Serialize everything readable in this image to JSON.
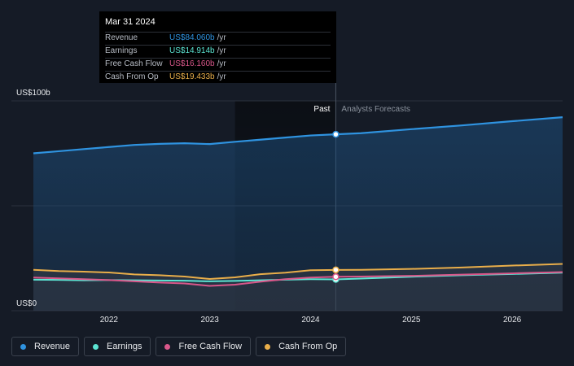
{
  "chart_data": {
    "type": "line",
    "y_unit_labels": [
      "US$100b",
      "US$0"
    ],
    "ylim": [
      0,
      100
    ],
    "xlim": [
      2021.25,
      2026.5
    ],
    "x_ticks": [
      {
        "value": 2022,
        "label": "2022"
      },
      {
        "value": 2023,
        "label": "2023"
      },
      {
        "value": 2024,
        "label": "2024"
      },
      {
        "value": 2025,
        "label": "2025"
      },
      {
        "value": 2026,
        "label": "2026"
      }
    ],
    "past_label": "Past",
    "forecast_label": "Analysts Forecasts",
    "divider_x": 2024.25,
    "highlight_range": [
      2023.25,
      2024.25
    ],
    "series": [
      {
        "name": "Revenue",
        "color": "#2f93e0",
        "points": [
          [
            2021.25,
            75
          ],
          [
            2021.5,
            76
          ],
          [
            2021.75,
            77
          ],
          [
            2022,
            78
          ],
          [
            2022.25,
            79
          ],
          [
            2022.5,
            79.5
          ],
          [
            2022.75,
            79.8
          ],
          [
            2023,
            79.4
          ],
          [
            2023.25,
            80.5
          ],
          [
            2023.5,
            81.5
          ],
          [
            2023.75,
            82.5
          ],
          [
            2024,
            83.5
          ],
          [
            2024.25,
            84.06
          ],
          [
            2024.5,
            84.6
          ],
          [
            2025,
            86.5
          ],
          [
            2025.5,
            88.3
          ],
          [
            2026,
            90.3
          ],
          [
            2026.5,
            92.2
          ]
        ]
      },
      {
        "name": "Earnings",
        "color": "#5ce5d3",
        "points": [
          [
            2021.25,
            14.8
          ],
          [
            2021.5,
            14.7
          ],
          [
            2021.75,
            14.5
          ],
          [
            2022,
            14.6
          ],
          [
            2022.25,
            14.5
          ],
          [
            2022.5,
            14.4
          ],
          [
            2022.75,
            14.3
          ],
          [
            2023,
            14.0
          ],
          [
            2023.25,
            14.2
          ],
          [
            2023.5,
            14.5
          ],
          [
            2023.75,
            14.8
          ],
          [
            2024,
            15.0
          ],
          [
            2024.25,
            14.914
          ],
          [
            2024.5,
            15.3
          ],
          [
            2025,
            16.2
          ],
          [
            2025.5,
            16.9
          ],
          [
            2026,
            17.5
          ],
          [
            2026.5,
            18.1
          ]
        ]
      },
      {
        "name": "Free Cash Flow",
        "color": "#d9578a",
        "points": [
          [
            2021.25,
            15.8
          ],
          [
            2021.5,
            15.4
          ],
          [
            2021.75,
            15.0
          ],
          [
            2022,
            14.6
          ],
          [
            2022.25,
            14.0
          ],
          [
            2022.5,
            13.4
          ],
          [
            2022.75,
            13.0
          ],
          [
            2023,
            11.8
          ],
          [
            2023.25,
            12.4
          ],
          [
            2023.5,
            13.8
          ],
          [
            2023.75,
            15.0
          ],
          [
            2024,
            15.8
          ],
          [
            2024.25,
            16.16
          ],
          [
            2024.5,
            16.3
          ],
          [
            2025,
            16.6
          ],
          [
            2025.5,
            17.2
          ],
          [
            2026,
            17.8
          ],
          [
            2026.5,
            18.4
          ]
        ]
      },
      {
        "name": "Cash From Op",
        "color": "#e9ae4a",
        "points": [
          [
            2021.25,
            19.5
          ],
          [
            2021.5,
            18.9
          ],
          [
            2021.75,
            18.6
          ],
          [
            2022,
            18.2
          ],
          [
            2022.25,
            17.3
          ],
          [
            2022.5,
            16.9
          ],
          [
            2022.75,
            16.3
          ],
          [
            2023,
            15.1
          ],
          [
            2023.25,
            15.9
          ],
          [
            2023.5,
            17.4
          ],
          [
            2023.75,
            18.1
          ],
          [
            2024,
            19.3
          ],
          [
            2024.25,
            19.433
          ],
          [
            2024.5,
            19.5
          ],
          [
            2025,
            19.9
          ],
          [
            2025.5,
            20.6
          ],
          [
            2026,
            21.5
          ],
          [
            2026.5,
            22.3
          ]
        ]
      }
    ]
  },
  "tooltip": {
    "date": "Mar 31 2024",
    "rows": [
      {
        "label": "Revenue",
        "value": "US$84.060b",
        "unit": "/yr",
        "color": "#2f93e0"
      },
      {
        "label": "Earnings",
        "value": "US$14.914b",
        "unit": "/yr",
        "color": "#5ce5d3"
      },
      {
        "label": "Free Cash Flow",
        "value": "US$16.160b",
        "unit": "/yr",
        "color": "#d9578a"
      },
      {
        "label": "Cash From Op",
        "value": "US$19.433b",
        "unit": "/yr",
        "color": "#e9ae4a"
      }
    ]
  },
  "legend": [
    {
      "label": "Revenue",
      "color": "#2f93e0"
    },
    {
      "label": "Earnings",
      "color": "#5ce5d3"
    },
    {
      "label": "Free Cash Flow",
      "color": "#d9578a"
    },
    {
      "label": "Cash From Op",
      "color": "#e9ae4a"
    }
  ]
}
